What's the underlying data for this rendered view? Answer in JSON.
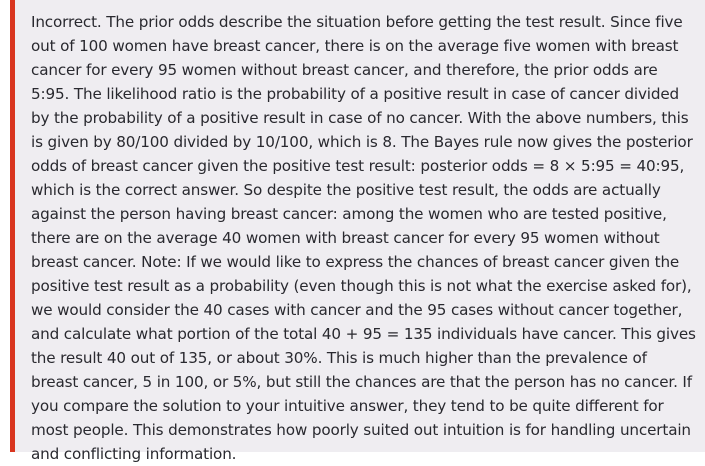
{
  "feedback": {
    "status": "incorrect",
    "accent_color": "#d9351f",
    "background_color": "#efedf1",
    "text_color": "#29292f",
    "text": "Incorrect. The prior odds describe the situation before getting the test result. Since five out of 100 women have breast cancer, there is on the average five women with breast cancer for every 95 women without breast cancer, and therefore, the prior odds are 5:95. The likelihood ratio is the probability of a positive result in case of cancer divided by the probability of a positive result in case of no cancer. With the above numbers, this is given by 80/100 divided by 10/100, which is 8. The Bayes rule now gives the posterior odds of breast cancer given the positive test result: posterior odds = 8 × 5:95 = 40:95, which is the correct answer. So despite the positive test result, the odds are actually against the person having breast cancer: among the women who are tested positive, there are on the average 40 women with breast cancer for every 95 women without breast cancer. Note: If we would like to express the chances of breast cancer given the positive test result as a probability (even though this is not what the exercise asked for), we would consider the 40 cases with cancer and the 95 cases without cancer together, and calculate what portion of the total 40 + 95 = 135 individuals have cancer. This gives the result 40 out of 135, or about 30%. This is much higher than the prevalence of breast cancer, 5 in 100, or 5%, but still the chances are that the person has no cancer. If you compare the solution to your intuitive answer, they tend to be quite different for most people. This demonstrates how poorly suited out intuition is for handling uncertain and conflicting information."
  }
}
